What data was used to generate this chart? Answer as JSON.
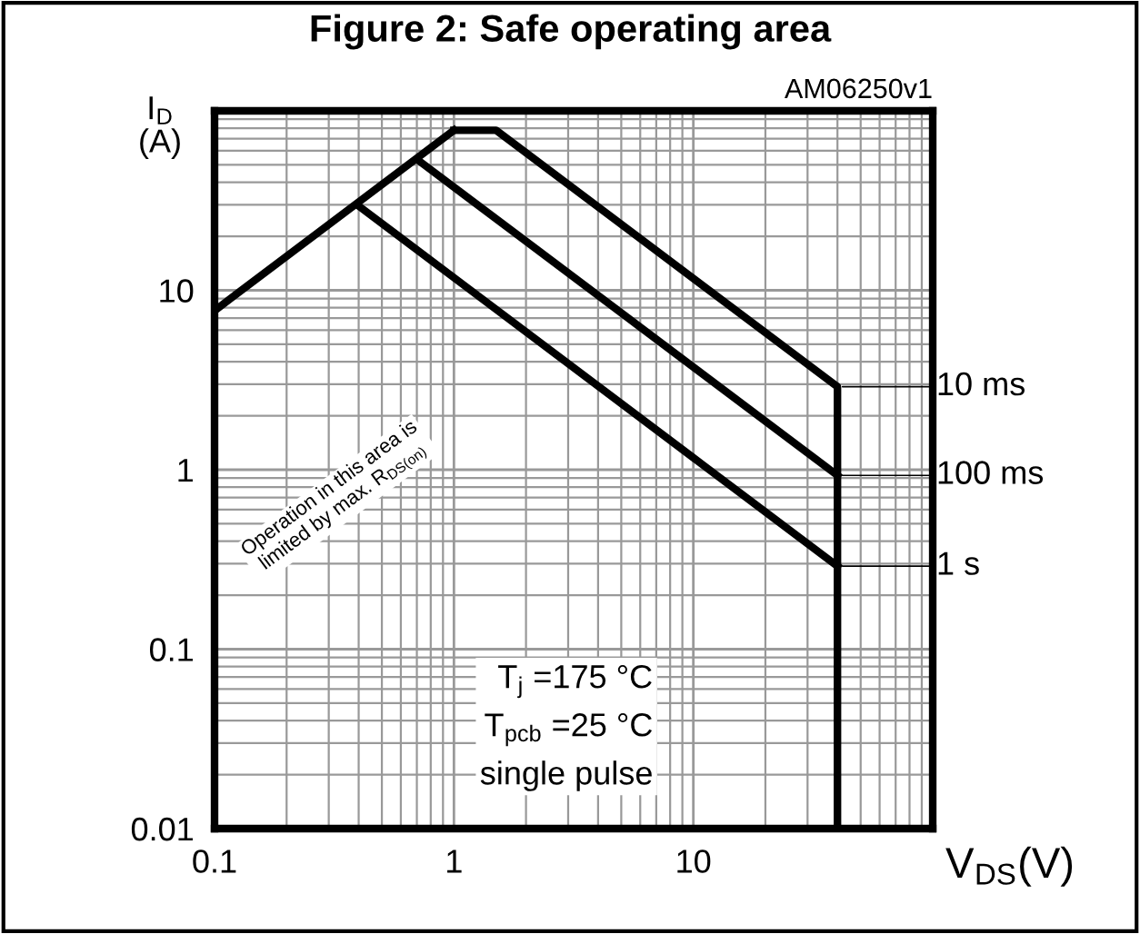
{
  "chart_data": {
    "type": "line",
    "title": "Figure 2: Safe operating area",
    "subtitle": "AM06250v1",
    "xlabel": "V$_{DS}$(V)",
    "ylabel": "I$_{D}$\n(A)",
    "log": "xy",
    "xlim": [
      0.1,
      100
    ],
    "ylim": [
      0.01,
      100
    ],
    "xticks": [
      0.1,
      1,
      10,
      {
        "value": 100,
        "label": null
      }
    ],
    "yticks": [
      0.01,
      0.1,
      1,
      10,
      {
        "value": 100,
        "label": null
      }
    ],
    "grid": true,
    "legend": "right",
    "marker": "none",
    "line_style": "solid",
    "series": [
      {
        "color": "#000000",
        "x": [
          0.1,
          1.0
        ],
        "values": [
          7.7,
          78
        ]
      },
      {
        "name": "10 ms",
        "color": "#000000",
        "x": [
          1.0,
          1.5,
          40,
          40
        ],
        "values": [
          78,
          78,
          2.9,
          0.01
        ]
      },
      {
        "name": "100 ms",
        "color": "#000000",
        "x": [
          0.71,
          40
        ],
        "values": [
          53,
          0.93
        ]
      },
      {
        "name": "1 s",
        "color": "#000000",
        "x": [
          0.4,
          40
        ],
        "values": [
          29.5,
          0.29
        ]
      }
    ],
    "annotations": [
      "Operation in this area is\nlimited by max. R$_{DS(on)}$",
      "T$_{j}$ =175 °C\nT$_{pcb}$ =25 °C\nsingle pulse"
    ]
  }
}
